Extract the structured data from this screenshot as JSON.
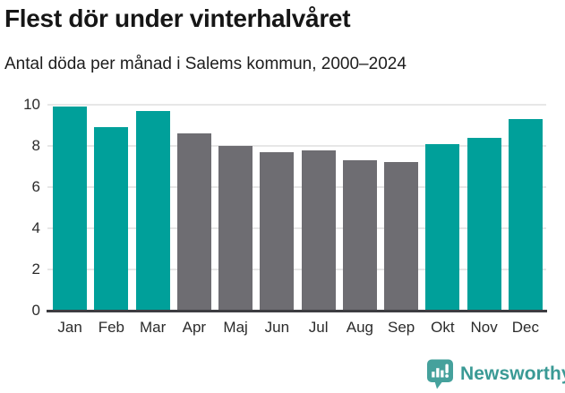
{
  "header": {
    "title": "Flest dör under vinterhalvåret",
    "subtitle": "Antal döda per månad i Salems kommun, 2000–2024"
  },
  "footer": {
    "brand": "Newsworthy",
    "logo_icon": "speech-bubble-bar-chart-exclamation-icon"
  },
  "colors": {
    "highlight": "#00a09a",
    "muted": "#6e6d72",
    "gridline": "#e7e7e7",
    "baseline": "#3d3d41",
    "brand_text": "#3a9a95",
    "logo_bubble": "#45a19c"
  },
  "chart_data": {
    "type": "bar",
    "title": "Flest dör under vinterhalvåret",
    "subtitle": "Antal döda per månad i Salems kommun, 2000–2024",
    "categories": [
      "Jan",
      "Feb",
      "Mar",
      "Apr",
      "Maj",
      "Jun",
      "Jul",
      "Aug",
      "Sep",
      "Okt",
      "Nov",
      "Dec"
    ],
    "values": [
      9.9,
      8.9,
      9.7,
      8.6,
      8.0,
      7.7,
      7.8,
      7.3,
      7.2,
      8.1,
      8.4,
      9.3
    ],
    "bar_palette": [
      "highlight",
      "highlight",
      "highlight",
      "muted",
      "muted",
      "muted",
      "muted",
      "muted",
      "muted",
      "highlight",
      "highlight",
      "highlight"
    ],
    "xlabel": "",
    "ylabel": "",
    "ylim": [
      0,
      10
    ],
    "yticks": [
      0,
      2,
      4,
      6,
      8,
      10
    ],
    "grid": true,
    "legend_position": "none"
  }
}
